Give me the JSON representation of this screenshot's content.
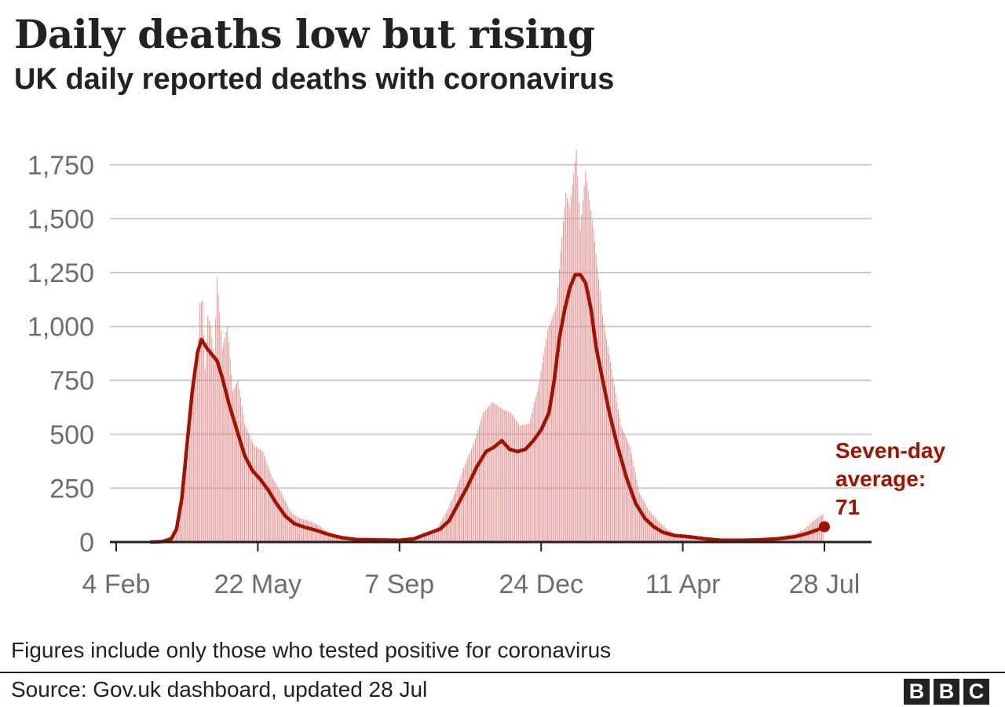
{
  "header": {
    "title": "Daily deaths low but rising",
    "subtitle": "UK daily reported deaths with coronavirus"
  },
  "footer": {
    "note": "Figures include only those who tested positive for coronavirus",
    "source": "Source: Gov.uk dashboard, updated 28 Jul",
    "logo_letters": [
      "B",
      "B",
      "C"
    ]
  },
  "colors": {
    "bar": "#e07b7b",
    "line": "#a31200",
    "grid": "#cccccc",
    "axis": "#222222",
    "tick_text": "#6e6e6e",
    "annotation": "#a31200"
  },
  "chart_data": {
    "type": "bar",
    "title": "Daily deaths low but rising",
    "subtitle": "UK daily reported deaths with coronavirus",
    "xlabel": "",
    "ylabel": "",
    "ylim": [
      0,
      1850
    ],
    "yticks": [
      0,
      250,
      500,
      750,
      1000,
      1250,
      1500,
      1750
    ],
    "ytick_labels": [
      "0",
      "250",
      "500",
      "750",
      "1,000",
      "1,250",
      "1,500",
      "1,750"
    ],
    "x_range": [
      "2020-02-04",
      "2021-07-28"
    ],
    "xticks": [
      "2020-02-04",
      "2020-05-22",
      "2020-09-07",
      "2020-12-24",
      "2021-04-11",
      "2021-07-28"
    ],
    "xtick_labels": [
      "4 Feb",
      "22 May",
      "7 Sep",
      "24 Dec",
      "11 Apr",
      "28 Jul"
    ],
    "grid": true,
    "series": [
      {
        "kind": "bar",
        "values_description": "daily reported deaths",
        "points": [
          [
            "2020-03-10",
            5
          ],
          [
            "2020-03-17",
            30
          ],
          [
            "2020-03-24",
            120
          ],
          [
            "2020-03-31",
            450
          ],
          [
            "2020-04-03",
            680
          ],
          [
            "2020-04-07",
            950
          ],
          [
            "2020-04-08",
            1110
          ],
          [
            "2020-04-10",
            1120
          ],
          [
            "2020-04-12",
            800
          ],
          [
            "2020-04-14",
            1050
          ],
          [
            "2020-04-16",
            1000
          ],
          [
            "2020-04-19",
            850
          ],
          [
            "2020-04-21",
            1230
          ],
          [
            "2020-04-25",
            900
          ],
          [
            "2020-04-29",
            1000
          ],
          [
            "2020-05-03",
            700
          ],
          [
            "2020-05-07",
            750
          ],
          [
            "2020-05-12",
            550
          ],
          [
            "2020-05-19",
            450
          ],
          [
            "2020-05-26",
            420
          ],
          [
            "2020-06-02",
            300
          ],
          [
            "2020-06-09",
            230
          ],
          [
            "2020-06-16",
            140
          ],
          [
            "2020-06-23",
            110
          ],
          [
            "2020-06-30",
            100
          ],
          [
            "2020-07-07",
            80
          ],
          [
            "2020-07-14",
            50
          ],
          [
            "2020-07-21",
            35
          ],
          [
            "2020-08-01",
            20
          ],
          [
            "2020-08-15",
            12
          ],
          [
            "2020-09-01",
            8
          ],
          [
            "2020-09-15",
            15
          ],
          [
            "2020-09-29",
            40
          ],
          [
            "2020-10-06",
            70
          ],
          [
            "2020-10-13",
            140
          ],
          [
            "2020-10-20",
            240
          ],
          [
            "2020-10-27",
            360
          ],
          [
            "2020-11-03",
            460
          ],
          [
            "2020-11-10",
            600
          ],
          [
            "2020-11-17",
            650
          ],
          [
            "2020-11-24",
            620
          ],
          [
            "2020-12-01",
            600
          ],
          [
            "2020-12-08",
            540
          ],
          [
            "2020-12-15",
            550
          ],
          [
            "2020-12-22",
            720
          ],
          [
            "2020-12-29",
            980
          ],
          [
            "2021-01-05",
            1100
          ],
          [
            "2021-01-08",
            1350
          ],
          [
            "2021-01-12",
            1620
          ],
          [
            "2021-01-15",
            1550
          ],
          [
            "2021-01-20",
            1820
          ],
          [
            "2021-01-23",
            1450
          ],
          [
            "2021-01-27",
            1720
          ],
          [
            "2021-02-02",
            1450
          ],
          [
            "2021-02-09",
            1050
          ],
          [
            "2021-02-16",
            800
          ],
          [
            "2021-02-23",
            540
          ],
          [
            "2021-03-02",
            440
          ],
          [
            "2021-03-09",
            230
          ],
          [
            "2021-03-16",
            150
          ],
          [
            "2021-03-23",
            100
          ],
          [
            "2021-03-30",
            60
          ],
          [
            "2021-04-06",
            35
          ],
          [
            "2021-04-13",
            25
          ],
          [
            "2021-04-27",
            15
          ],
          [
            "2021-05-11",
            10
          ],
          [
            "2021-05-25",
            8
          ],
          [
            "2021-06-08",
            10
          ],
          [
            "2021-06-22",
            20
          ],
          [
            "2021-07-06",
            40
          ],
          [
            "2021-07-13",
            60
          ],
          [
            "2021-07-20",
            100
          ],
          [
            "2021-07-27",
            130
          ]
        ]
      },
      {
        "kind": "line",
        "name": "Seven-day average",
        "points": [
          [
            "2020-03-01",
            0
          ],
          [
            "2020-03-10",
            2
          ],
          [
            "2020-03-17",
            15
          ],
          [
            "2020-03-21",
            60
          ],
          [
            "2020-03-25",
            200
          ],
          [
            "2020-03-29",
            450
          ],
          [
            "2020-04-02",
            700
          ],
          [
            "2020-04-06",
            880
          ],
          [
            "2020-04-09",
            940
          ],
          [
            "2020-04-13",
            900
          ],
          [
            "2020-04-17",
            870
          ],
          [
            "2020-04-21",
            840
          ],
          [
            "2020-04-25",
            760
          ],
          [
            "2020-04-30",
            640
          ],
          [
            "2020-05-06",
            520
          ],
          [
            "2020-05-12",
            400
          ],
          [
            "2020-05-18",
            330
          ],
          [
            "2020-05-24",
            290
          ],
          [
            "2020-05-30",
            240
          ],
          [
            "2020-06-05",
            180
          ],
          [
            "2020-06-12",
            120
          ],
          [
            "2020-06-19",
            85
          ],
          [
            "2020-06-26",
            70
          ],
          [
            "2020-07-05",
            55
          ],
          [
            "2020-07-15",
            35
          ],
          [
            "2020-07-25",
            20
          ],
          [
            "2020-08-05",
            12
          ],
          [
            "2020-08-20",
            10
          ],
          [
            "2020-09-07",
            8
          ],
          [
            "2020-09-18",
            15
          ],
          [
            "2020-09-29",
            40
          ],
          [
            "2020-10-08",
            60
          ],
          [
            "2020-10-15",
            100
          ],
          [
            "2020-10-22",
            180
          ],
          [
            "2020-10-29",
            260
          ],
          [
            "2020-11-05",
            350
          ],
          [
            "2020-11-12",
            420
          ],
          [
            "2020-11-18",
            440
          ],
          [
            "2020-11-24",
            470
          ],
          [
            "2020-11-30",
            430
          ],
          [
            "2020-12-06",
            420
          ],
          [
            "2020-12-12",
            430
          ],
          [
            "2020-12-18",
            470
          ],
          [
            "2020-12-24",
            520
          ],
          [
            "2020-12-30",
            600
          ],
          [
            "2021-01-03",
            750
          ],
          [
            "2021-01-07",
            950
          ],
          [
            "2021-01-11",
            1080
          ],
          [
            "2021-01-15",
            1180
          ],
          [
            "2021-01-19",
            1240
          ],
          [
            "2021-01-23",
            1240
          ],
          [
            "2021-01-27",
            1200
          ],
          [
            "2021-01-31",
            1080
          ],
          [
            "2021-02-04",
            900
          ],
          [
            "2021-02-09",
            750
          ],
          [
            "2021-02-14",
            600
          ],
          [
            "2021-02-20",
            450
          ],
          [
            "2021-02-27",
            300
          ],
          [
            "2021-03-06",
            180
          ],
          [
            "2021-03-13",
            110
          ],
          [
            "2021-03-20",
            70
          ],
          [
            "2021-03-27",
            45
          ],
          [
            "2021-04-05",
            30
          ],
          [
            "2021-04-15",
            25
          ],
          [
            "2021-04-28",
            15
          ],
          [
            "2021-05-10",
            8
          ],
          [
            "2021-05-25",
            8
          ],
          [
            "2021-06-08",
            10
          ],
          [
            "2021-06-22",
            15
          ],
          [
            "2021-07-06",
            25
          ],
          [
            "2021-07-15",
            40
          ],
          [
            "2021-07-22",
            55
          ],
          [
            "2021-07-28",
            71
          ]
        ]
      }
    ],
    "annotations": [
      {
        "lines": [
          "Seven-day",
          "average:",
          "71"
        ],
        "anchor_date": "2021-07-28",
        "anchor_value": 71
      }
    ]
  }
}
